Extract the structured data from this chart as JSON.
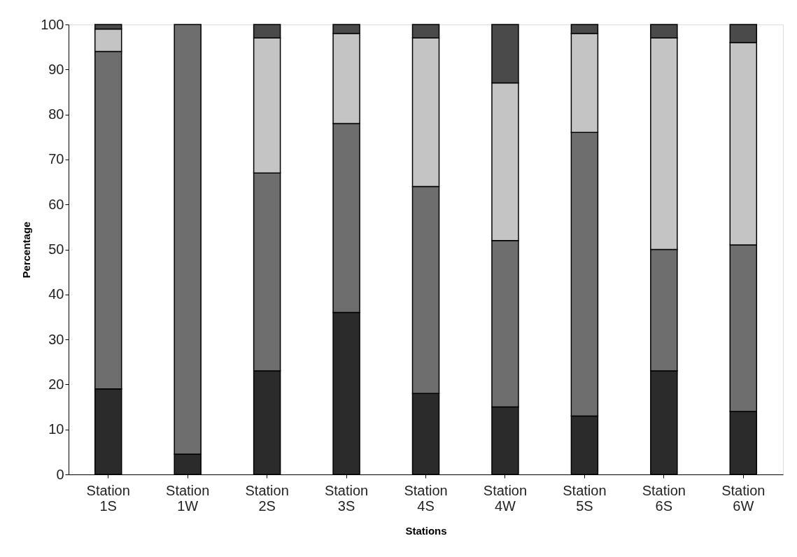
{
  "chart_data": {
    "type": "bar",
    "stacked": true,
    "xlabel": "Stations",
    "ylabel": "Percentage",
    "categories": [
      "Station 1S",
      "Station 1W",
      "Station 2S",
      "Station 3S",
      "Station 4S",
      "Station 4W",
      "Station 5S",
      "Station 6S",
      "Station 6W"
    ],
    "series": [
      {
        "color": "#2b2b2b",
        "values": [
          19,
          4.5,
          23,
          36,
          18,
          15,
          13,
          23,
          14
        ]
      },
      {
        "color": "#6e6e6e",
        "values": [
          75,
          95.5,
          44,
          42,
          46,
          37,
          63,
          27,
          37
        ]
      },
      {
        "color": "#c4c4c4",
        "values": [
          5,
          null,
          30,
          20,
          33,
          35,
          22,
          47,
          45
        ]
      },
      {
        "color": "#4a4a4a",
        "values": [
          1,
          null,
          3,
          2,
          3,
          13,
          2,
          3,
          4
        ]
      }
    ],
    "ylim": [
      0,
      100
    ],
    "yticks": [
      0,
      10,
      20,
      30,
      40,
      50,
      60,
      70,
      80,
      90,
      100
    ],
    "grid": false,
    "legend": false
  }
}
